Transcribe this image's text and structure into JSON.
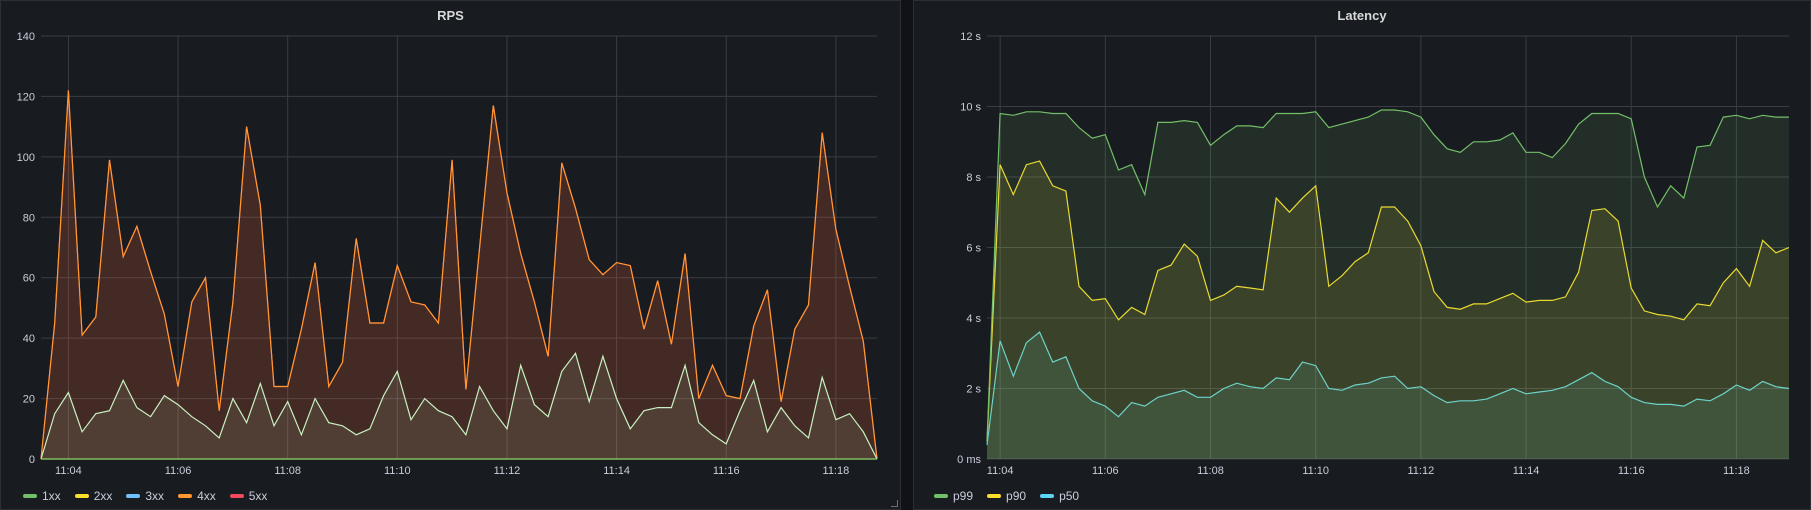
{
  "panels": {
    "rps": {
      "title": "RPS"
    },
    "latency": {
      "title": "Latency"
    }
  },
  "chart_data": [
    {
      "type": "area",
      "title": "RPS",
      "ylim": [
        0,
        140
      ],
      "yticks": [
        0,
        20,
        40,
        60,
        80,
        100,
        120,
        140
      ],
      "ytick_labels": [
        "0",
        "20",
        "40",
        "60",
        "80",
        "100",
        "120",
        "140"
      ],
      "xticks": [
        "11:04",
        "11:06",
        "11:08",
        "11:10",
        "11:12",
        "11:14",
        "11:16",
        "11:18"
      ],
      "xticks_min": [
        4,
        6,
        8,
        10,
        12,
        14,
        16,
        18
      ],
      "x_range_min": [
        3.5,
        18.75
      ],
      "x_min": [
        3.5,
        3.75,
        4.0,
        4.25,
        4.5,
        4.75,
        5.0,
        5.25,
        5.5,
        5.75,
        6.0,
        6.25,
        6.5,
        6.75,
        7.0,
        7.25,
        7.5,
        7.75,
        8.0,
        8.25,
        8.5,
        8.75,
        9.0,
        9.25,
        9.5,
        9.75,
        10.0,
        10.25,
        10.5,
        10.75,
        11.0,
        11.25,
        11.5,
        11.75,
        12.0,
        12.25,
        12.5,
        12.75,
        13.0,
        13.25,
        13.5,
        13.75,
        14.0,
        14.25,
        14.5,
        14.75,
        15.0,
        15.25,
        15.5,
        15.75,
        16.0,
        16.25,
        16.5,
        16.75,
        17.0,
        17.25,
        17.5,
        17.75,
        18.0,
        18.25,
        18.5,
        18.75
      ],
      "grid": true,
      "legend_position": "bottom-left",
      "series": [
        {
          "name": "1xx",
          "color": "#73bf69",
          "values": [
            0,
            0,
            0,
            0,
            0,
            0,
            0,
            0,
            0,
            0,
            0,
            0,
            0,
            0,
            0,
            0,
            0,
            0,
            0,
            0,
            0,
            0,
            0,
            0,
            0,
            0,
            0,
            0,
            0,
            0,
            0,
            0,
            0,
            0,
            0,
            0,
            0,
            0,
            0,
            0,
            0,
            0,
            0,
            0,
            0,
            0,
            0,
            0,
            0,
            0,
            0,
            0,
            0,
            0,
            0,
            0,
            0,
            0,
            0,
            0,
            0,
            0
          ]
        },
        {
          "name": "2xx",
          "color": "#fade2a",
          "values": [
            0,
            0,
            0,
            0,
            0,
            0,
            0,
            0,
            0,
            0,
            0,
            0,
            0,
            0,
            0,
            0,
            0,
            0,
            0,
            0,
            0,
            0,
            0,
            0,
            0,
            0,
            0,
            0,
            0,
            0,
            0,
            0,
            0,
            0,
            0,
            0,
            0,
            0,
            0,
            0,
            0,
            0,
            0,
            0,
            0,
            0,
            0,
            0,
            0,
            0,
            0,
            0,
            0,
            0,
            0,
            0,
            0,
            0,
            0,
            0,
            0,
            0
          ]
        },
        {
          "name": "3xx",
          "color": "#8ab8ff",
          "values": [
            0,
            15,
            22,
            9,
            15,
            16,
            26,
            17,
            14,
            21,
            18,
            14,
            11,
            7,
            20,
            12,
            25,
            11,
            19,
            8,
            20,
            12,
            11,
            8,
            10,
            21,
            29,
            13,
            20,
            16,
            14,
            8,
            24,
            16,
            10,
            31,
            18,
            14,
            29,
            35,
            19,
            34,
            20,
            10,
            16,
            17,
            17,
            31,
            12,
            8,
            5,
            16,
            26,
            9,
            17,
            11,
            7,
            27,
            13,
            15,
            9,
            0
          ]
        },
        {
          "name": "4xx",
          "color": "#ff9830",
          "values": [
            0,
            45,
            122,
            41,
            47,
            99,
            67,
            77,
            62,
            48,
            24,
            52,
            60,
            16,
            52,
            110,
            84,
            24,
            24,
            43,
            65,
            24,
            32,
            73,
            45,
            45,
            64,
            52,
            51,
            45,
            99,
            23,
            70,
            117,
            88,
            68,
            52,
            34,
            98,
            83,
            66,
            61,
            65,
            64,
            43,
            59,
            38,
            68,
            20,
            31,
            21,
            20,
            44,
            56,
            19,
            43,
            51,
            108,
            76,
            57,
            39,
            0
          ]
        },
        {
          "name": "5xx",
          "color": "#f2495c",
          "values": [
            0,
            45,
            122,
            41,
            47,
            99,
            67,
            77,
            62,
            48,
            24,
            52,
            60,
            16,
            52,
            110,
            84,
            24,
            24,
            43,
            65,
            24,
            32,
            73,
            45,
            45,
            64,
            52,
            51,
            45,
            99,
            23,
            70,
            117,
            88,
            68,
            52,
            34,
            98,
            83,
            66,
            61,
            65,
            64,
            43,
            59,
            38,
            68,
            20,
            31,
            21,
            20,
            44,
            56,
            19,
            43,
            51,
            108,
            76,
            57,
            39,
            0
          ]
        }
      ]
    },
    {
      "type": "area",
      "title": "Latency",
      "ylim": [
        0,
        12
      ],
      "yticks": [
        0,
        2,
        4,
        6,
        8,
        10,
        12
      ],
      "ytick_labels": [
        "0 ms",
        "2 s",
        "4 s",
        "6 s",
        "8 s",
        "10 s",
        "12 s"
      ],
      "xticks": [
        "11:04",
        "11:06",
        "11:08",
        "11:10",
        "11:12",
        "11:14",
        "11:16",
        "11:18"
      ],
      "xticks_min": [
        4,
        6,
        8,
        10,
        12,
        14,
        16,
        18
      ],
      "x_range_min": [
        3.75,
        19.0
      ],
      "x_min": [
        3.75,
        4.0,
        4.25,
        4.5,
        4.75,
        5.0,
        5.25,
        5.5,
        5.75,
        6.0,
        6.25,
        6.5,
        6.75,
        7.0,
        7.25,
        7.5,
        7.75,
        8.0,
        8.25,
        8.5,
        8.75,
        9.0,
        9.25,
        9.5,
        9.75,
        10.0,
        10.25,
        10.5,
        10.75,
        11.0,
        11.25,
        11.5,
        11.75,
        12.0,
        12.25,
        12.5,
        12.75,
        13.0,
        13.25,
        13.5,
        13.75,
        14.0,
        14.25,
        14.5,
        14.75,
        15.0,
        15.25,
        15.5,
        15.75,
        16.0,
        16.25,
        16.5,
        16.75,
        17.0,
        17.25,
        17.5,
        17.75,
        18.0,
        18.25,
        18.5,
        18.75,
        19.0
      ],
      "grid": true,
      "legend_position": "bottom-left",
      "series": [
        {
          "name": "p99",
          "color": "#73bf69",
          "values": [
            0.5,
            9.8,
            9.75,
            9.85,
            9.85,
            9.8,
            9.8,
            9.4,
            9.1,
            9.2,
            8.2,
            8.35,
            7.5,
            9.55,
            9.55,
            9.6,
            9.55,
            8.9,
            9.2,
            9.45,
            9.45,
            9.4,
            9.8,
            9.8,
            9.8,
            9.85,
            9.4,
            9.5,
            9.6,
            9.7,
            9.9,
            9.9,
            9.85,
            9.7,
            9.2,
            8.8,
            8.7,
            9.0,
            9.0,
            9.05,
            9.25,
            8.7,
            8.7,
            8.55,
            8.95,
            9.5,
            9.8,
            9.8,
            9.8,
            9.65,
            8.0,
            7.15,
            7.75,
            7.4,
            8.85,
            8.9,
            9.7,
            9.75,
            9.65,
            9.75,
            9.7,
            9.7
          ]
        },
        {
          "name": "p90",
          "color": "#fade2a",
          "values": [
            0.5,
            8.35,
            7.5,
            8.35,
            8.45,
            7.75,
            7.6,
            4.9,
            4.5,
            4.55,
            3.95,
            4.3,
            4.1,
            5.35,
            5.5,
            6.1,
            5.75,
            4.5,
            4.65,
            4.9,
            4.85,
            4.8,
            7.4,
            7.0,
            7.4,
            7.75,
            4.9,
            5.2,
            5.6,
            5.85,
            7.15,
            7.15,
            6.75,
            6.05,
            4.75,
            4.3,
            4.25,
            4.4,
            4.4,
            4.55,
            4.7,
            4.45,
            4.5,
            4.5,
            4.6,
            5.3,
            7.05,
            7.1,
            6.75,
            4.85,
            4.2,
            4.1,
            4.05,
            3.95,
            4.4,
            4.35,
            5.0,
            5.4,
            4.9,
            6.2,
            5.85,
            6.0
          ]
        },
        {
          "name": "p50",
          "color": "#5794f2",
          "values": [
            0.4,
            3.35,
            2.35,
            3.3,
            3.6,
            2.75,
            2.9,
            2.0,
            1.65,
            1.5,
            1.2,
            1.6,
            1.5,
            1.75,
            1.85,
            1.95,
            1.75,
            1.75,
            2.0,
            2.15,
            2.05,
            2.0,
            2.3,
            2.25,
            2.75,
            2.65,
            2.0,
            1.95,
            2.1,
            2.15,
            2.3,
            2.35,
            2.0,
            2.05,
            1.8,
            1.6,
            1.65,
            1.65,
            1.7,
            1.85,
            2.0,
            1.85,
            1.9,
            1.95,
            2.05,
            2.25,
            2.45,
            2.2,
            2.05,
            1.75,
            1.6,
            1.55,
            1.55,
            1.5,
            1.7,
            1.65,
            1.85,
            2.1,
            1.95,
            2.2,
            2.05,
            2.0
          ]
        }
      ]
    }
  ],
  "legends": {
    "rps": [
      {
        "label": "1xx",
        "color": "#73bf69"
      },
      {
        "label": "2xx",
        "color": "#fade2a"
      },
      {
        "label": "3xx",
        "color": "#73c0ff"
      },
      {
        "label": "4xx",
        "color": "#ff9830"
      },
      {
        "label": "5xx",
        "color": "#f2495c"
      }
    ],
    "latency": [
      {
        "label": "p99",
        "color": "#73bf69"
      },
      {
        "label": "p90",
        "color": "#fade2a"
      },
      {
        "label": "p50",
        "color": "#5ad4f0"
      }
    ]
  }
}
